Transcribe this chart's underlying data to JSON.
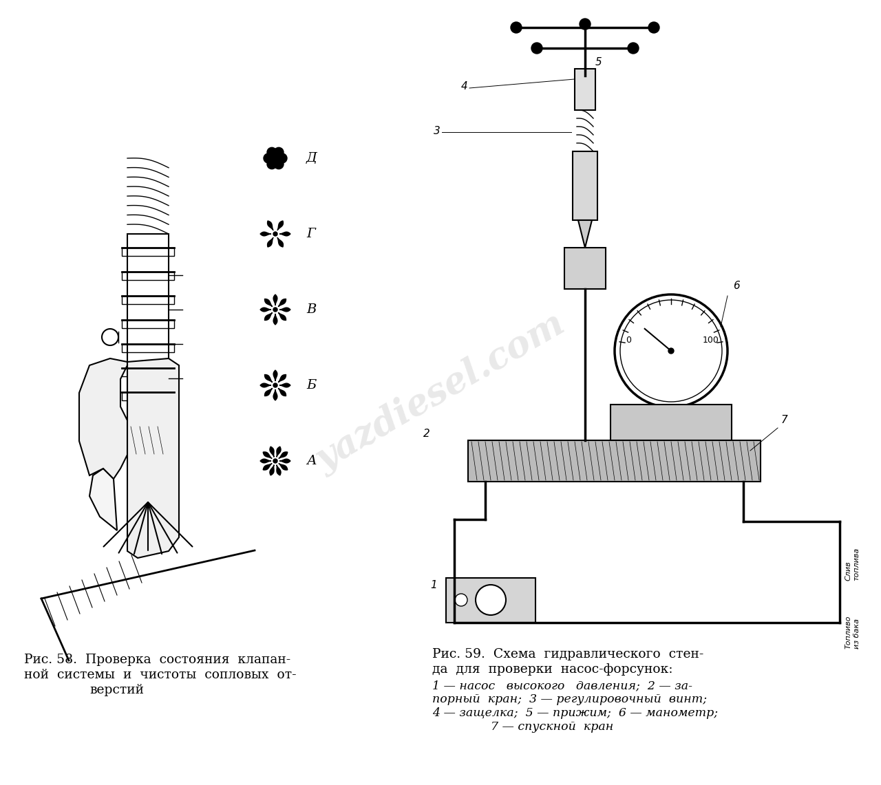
{
  "background_color": "#ffffff",
  "fig_width": 12.8,
  "fig_height": 11.41,
  "caption_left_line1": "Рис. 58.  Проверка  состояния  клапан-",
  "caption_left_line2": "ной  системы  и  чистоты  сопловых  от-",
  "caption_left_line3": "верстий",
  "caption_right_line1": "Рис. 59.  Схема  гидравлического  стен-",
  "caption_right_line2": "да  для  проверки  насос-форсунок:",
  "caption_right_line3": "1 — насос   высокого   давления;  2 — за-",
  "caption_right_line4": "порный  кран;  3 — регулировочный  винт;",
  "caption_right_line5": "4 — защелка;  5 — прижим;  6 — манометр;",
  "caption_right_line6": "7 — спускной  кран",
  "watermark_text": "yazdiesel.com",
  "watermark_color": "#c0c0c0",
  "watermark_alpha": 0.35,
  "caption_fontsize": 13.5,
  "caption_small_fontsize": 12.5
}
